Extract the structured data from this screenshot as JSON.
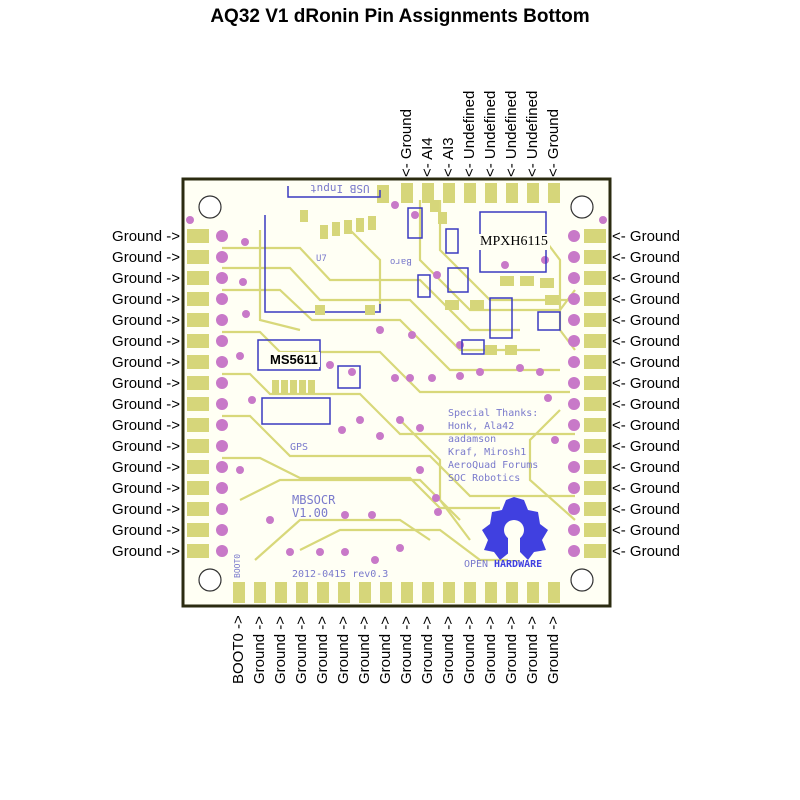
{
  "title": "AQ32 V1 dRonin Pin Assignments Bottom",
  "left_pins": [
    "Ground ->",
    "Ground ->",
    "Ground ->",
    "Ground ->",
    "Ground ->",
    "Ground ->",
    "Ground ->",
    "Ground ->",
    "Ground ->",
    "Ground ->",
    "Ground ->",
    "Ground ->",
    "Ground ->",
    "Ground ->",
    "Ground ->",
    "Ground ->"
  ],
  "right_pins": [
    "<- Ground",
    "<- Ground",
    "<- Ground",
    "<- Ground",
    "<- Ground",
    "<- Ground",
    "<- Ground",
    "<- Ground",
    "<- Ground",
    "<- Ground",
    "<- Ground",
    "<- Ground",
    "<- Ground",
    "<- Ground",
    "<- Ground",
    "<- Ground"
  ],
  "top_pins": [
    "<- Ground",
    "<- AI4",
    "<- AI3",
    "<- Undefined",
    "<- Undefined",
    "<- Undefined",
    "<- Undefined",
    "<- Ground"
  ],
  "bottom_pins": [
    "BOOT0 ->",
    "Ground ->",
    "Ground ->",
    "Ground ->",
    "Ground ->",
    "Ground ->",
    "Ground ->",
    "Ground ->",
    "Ground ->",
    "Ground ->",
    "Ground ->",
    "Ground ->",
    "Ground ->",
    "Ground ->",
    "Ground ->",
    "Ground ->"
  ],
  "chips": {
    "mpxh": "MPXH6115",
    "ms5611": "MS5611"
  },
  "silkscreen": {
    "usb": "USB Input",
    "u7": "U7",
    "baro": "Baro",
    "thanks": [
      "Special Thanks:",
      "Honk, Ala42",
      "aadamson",
      "Kraf, Mirosh1",
      "AeroQuad Forums",
      "SOC Robotics"
    ],
    "board": "MBSOCR",
    "version": "V1.00",
    "date": "2012-0415 rev0.3",
    "open": "OPEN",
    "hardware": "HARDWARE",
    "gps": "GPS",
    "boot": "BOOT0"
  },
  "colors": {
    "board_outline": "#2b2b10",
    "trace": "#d8d87a",
    "pad": "#d6d67a",
    "via": "#c879c8",
    "silk": "#3a3ac0",
    "logo": "#4040e0"
  }
}
